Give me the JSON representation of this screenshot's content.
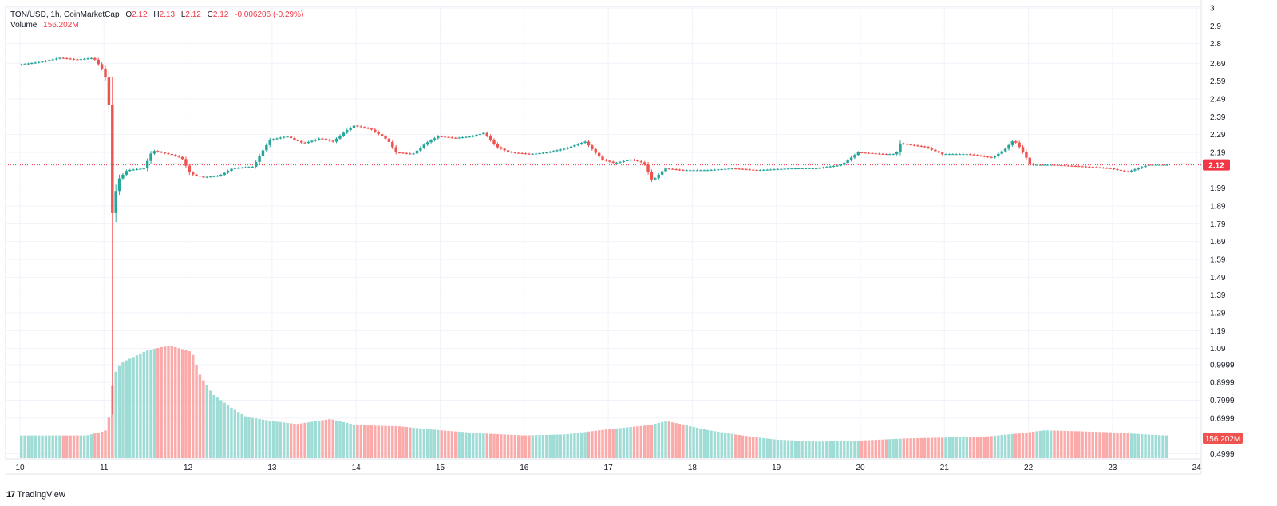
{
  "legend": {
    "symbol": "TON/USD, 1h, CoinMarketCap",
    "open_label": "O",
    "open": "2.12",
    "high_label": "H",
    "high": "2.13",
    "low_label": "L",
    "low": "2.12",
    "close_label": "C",
    "close": "2.12",
    "change": "-0.006206 (-0.29%)",
    "volume_label": "Volume",
    "volume_value": "156.202M"
  },
  "branding": {
    "name": "TradingView"
  },
  "colors": {
    "up": "#26a69a",
    "down": "#ef5350",
    "up_volume": "#9fdcd5",
    "down_volume": "#f9aaa9",
    "last_price": "#f23645",
    "grid": "#f0f3fa",
    "axis_text": "#131722"
  },
  "chart_data": {
    "type": "candlestick",
    "interval": "1h",
    "x_axis": {
      "tick_labels": [
        "10",
        "11",
        "12",
        "13",
        "14",
        "15",
        "16",
        "17",
        "18",
        "19",
        "20",
        "21",
        "22",
        "23",
        "24"
      ]
    },
    "price_axis": {
      "tick_labels": [
        "3",
        "2.9",
        "2.8",
        "2.69",
        "2.59",
        "2.49",
        "2.39",
        "2.29",
        "2.19",
        "1.99",
        "1.89",
        "1.79",
        "1.69",
        "1.59",
        "1.49",
        "1.39",
        "1.29",
        "1.19",
        "1.09",
        "0.9999",
        "0.8999",
        "0.7999",
        "0.6999",
        "0.4999"
      ],
      "last_price_label": "2.12",
      "range": [
        0.4,
        3.0
      ]
    },
    "volume_axis": {
      "last_label": "156.202M"
    },
    "price_path": [
      [
        10.0,
        2.68
      ],
      [
        10.3,
        2.7
      ],
      [
        10.5,
        2.72
      ],
      [
        10.7,
        2.71
      ],
      [
        10.9,
        2.72
      ],
      [
        11.0,
        2.66
      ],
      [
        11.05,
        2.6
      ],
      [
        11.08,
        2.55
      ],
      [
        11.1,
        2.0
      ],
      [
        11.13,
        1.82
      ],
      [
        11.18,
        2.03
      ],
      [
        11.3,
        2.09
      ],
      [
        11.5,
        2.1
      ],
      [
        11.6,
        2.2
      ],
      [
        11.8,
        2.18
      ],
      [
        11.95,
        2.16
      ],
      [
        12.05,
        2.07
      ],
      [
        12.2,
        2.05
      ],
      [
        12.4,
        2.06
      ],
      [
        12.55,
        2.1
      ],
      [
        12.8,
        2.11
      ],
      [
        12.9,
        2.19
      ],
      [
        13.0,
        2.26
      ],
      [
        13.2,
        2.28
      ],
      [
        13.4,
        2.24
      ],
      [
        13.6,
        2.27
      ],
      [
        13.75,
        2.25
      ],
      [
        13.9,
        2.31
      ],
      [
        14.0,
        2.34
      ],
      [
        14.2,
        2.32
      ],
      [
        14.4,
        2.26
      ],
      [
        14.5,
        2.19
      ],
      [
        14.7,
        2.18
      ],
      [
        14.85,
        2.24
      ],
      [
        15.0,
        2.28
      ],
      [
        15.2,
        2.27
      ],
      [
        15.4,
        2.28
      ],
      [
        15.55,
        2.3
      ],
      [
        15.7,
        2.22
      ],
      [
        15.85,
        2.19
      ],
      [
        16.1,
        2.18
      ],
      [
        16.3,
        2.19
      ],
      [
        16.5,
        2.21
      ],
      [
        16.75,
        2.25
      ],
      [
        16.95,
        2.15
      ],
      [
        17.1,
        2.13
      ],
      [
        17.3,
        2.15
      ],
      [
        17.45,
        2.13
      ],
      [
        17.55,
        2.03
      ],
      [
        17.7,
        2.1
      ],
      [
        17.9,
        2.09
      ],
      [
        18.2,
        2.09
      ],
      [
        18.5,
        2.1
      ],
      [
        18.8,
        2.09
      ],
      [
        19.2,
        2.1
      ],
      [
        19.5,
        2.1
      ],
      [
        19.8,
        2.12
      ],
      [
        20.0,
        2.19
      ],
      [
        20.3,
        2.18
      ],
      [
        20.45,
        2.18
      ],
      [
        20.5,
        2.24
      ],
      [
        20.8,
        2.22
      ],
      [
        21.0,
        2.18
      ],
      [
        21.3,
        2.18
      ],
      [
        21.6,
        2.16
      ],
      [
        21.75,
        2.21
      ],
      [
        21.85,
        2.26
      ],
      [
        21.95,
        2.2
      ],
      [
        22.05,
        2.12
      ],
      [
        22.3,
        2.12
      ],
      [
        22.7,
        2.11
      ],
      [
        23.0,
        2.1
      ],
      [
        23.2,
        2.08
      ],
      [
        23.45,
        2.12
      ],
      [
        23.65,
        2.12
      ]
    ],
    "volume_path": [
      [
        10.0,
        0.22
      ],
      [
        10.5,
        0.22
      ],
      [
        10.8,
        0.22
      ],
      [
        11.0,
        0.26
      ],
      [
        11.05,
        0.28
      ],
      [
        11.08,
        0.55
      ],
      [
        11.12,
        0.8
      ],
      [
        11.2,
        0.92
      ],
      [
        11.5,
        1.04
      ],
      [
        11.7,
        1.08
      ],
      [
        11.8,
        1.09
      ],
      [
        12.05,
        1.03
      ],
      [
        12.15,
        0.8
      ],
      [
        12.3,
        0.62
      ],
      [
        12.5,
        0.5
      ],
      [
        12.7,
        0.4
      ],
      [
        13.0,
        0.36
      ],
      [
        13.3,
        0.33
      ],
      [
        13.7,
        0.38
      ],
      [
        14.0,
        0.32
      ],
      [
        14.5,
        0.31
      ],
      [
        15.0,
        0.27
      ],
      [
        15.5,
        0.24
      ],
      [
        16.0,
        0.22
      ],
      [
        16.5,
        0.23
      ],
      [
        17.0,
        0.28
      ],
      [
        17.5,
        0.32
      ],
      [
        17.7,
        0.36
      ],
      [
        18.2,
        0.27
      ],
      [
        18.6,
        0.22
      ],
      [
        19.0,
        0.18
      ],
      [
        19.5,
        0.16
      ],
      [
        20.0,
        0.17
      ],
      [
        20.5,
        0.19
      ],
      [
        21.0,
        0.2
      ],
      [
        21.5,
        0.21
      ],
      [
        21.9,
        0.24
      ],
      [
        22.2,
        0.27
      ],
      [
        22.6,
        0.26
      ],
      [
        23.0,
        0.25
      ],
      [
        23.4,
        0.23
      ],
      [
        23.65,
        0.22
      ]
    ]
  }
}
